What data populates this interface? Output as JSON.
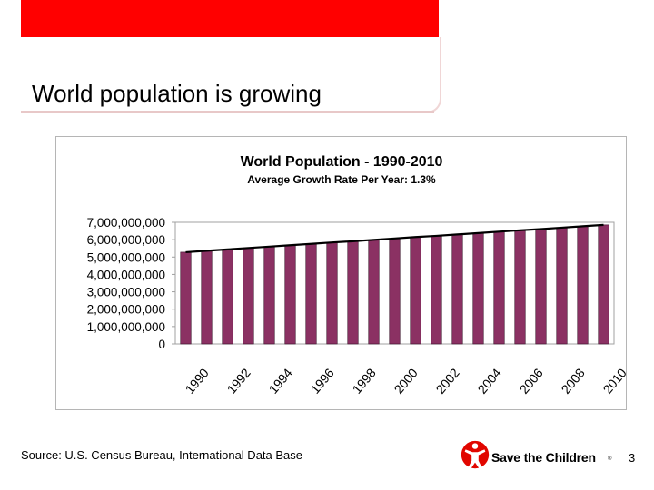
{
  "slide": {
    "title": "World population is growing",
    "source": "Source: U.S. Census Bureau, International Data Base",
    "page_number": "3"
  },
  "brand": {
    "name": "Save the Children",
    "registered_mark": "®",
    "color": "#e10600"
  },
  "colors": {
    "header_red": "#ff0000",
    "bar_fill": "#8b3163",
    "line": "#000000"
  },
  "chart_data": {
    "type": "bar",
    "title": "World Population - 1990-2010",
    "subtitle": "Average Growth Rate Per Year: 1.3%",
    "xlabel": "",
    "ylabel": "",
    "ylim": [
      0,
      7000000000
    ],
    "yticks": [
      0,
      1000000000,
      2000000000,
      3000000000,
      4000000000,
      5000000000,
      6000000000,
      7000000000
    ],
    "ytick_labels": [
      "0",
      "1,000,000,000",
      "2,000,000,000",
      "3,000,000,000",
      "4,000,000,000",
      "5,000,000,000",
      "6,000,000,000",
      "7,000,000,000"
    ],
    "categories": [
      "1990",
      "1991",
      "1992",
      "1993",
      "1994",
      "1995",
      "1996",
      "1997",
      "1998",
      "1999",
      "2000",
      "2001",
      "2002",
      "2003",
      "2004",
      "2005",
      "2006",
      "2007",
      "2008",
      "2009",
      "2010"
    ],
    "xtick_labels_shown": [
      "1990",
      "1992",
      "1994",
      "1996",
      "1998",
      "2000",
      "2002",
      "2004",
      "2006",
      "2008",
      "2010"
    ],
    "series": [
      {
        "name": "World Population",
        "values": [
          5280000000,
          5360000000,
          5440000000,
          5520000000,
          5600000000,
          5680000000,
          5760000000,
          5840000000,
          5910000000,
          5990000000,
          6070000000,
          6150000000,
          6220000000,
          6300000000,
          6380000000,
          6460000000,
          6540000000,
          6610000000,
          6690000000,
          6770000000,
          6850000000
        ]
      }
    ],
    "trend_line": true,
    "grid": false
  }
}
